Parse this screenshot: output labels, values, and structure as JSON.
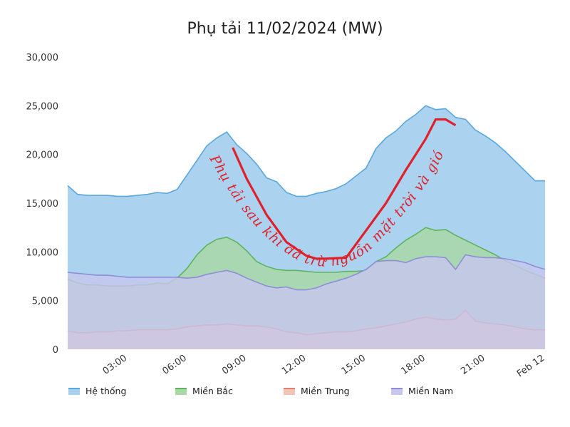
{
  "chart_data": {
    "type": "area",
    "title": "Phụ tải 11/02/2024 (MW)",
    "ylim": [
      0,
      30000
    ],
    "y_ticks": [
      "0",
      "5,000",
      "10,000",
      "15,000",
      "20,000",
      "25,000",
      "30,000"
    ],
    "x_range": [
      0,
      24
    ],
    "x_ticks": [
      {
        "x": 3,
        "label": "03:00"
      },
      {
        "x": 6,
        "label": "06:00"
      },
      {
        "x": 9,
        "label": "09:00"
      },
      {
        "x": 12,
        "label": "12:00"
      },
      {
        "x": 15,
        "label": "15:00"
      },
      {
        "x": 18,
        "label": "18:00"
      },
      {
        "x": 21,
        "label": "21:00"
      },
      {
        "x": 24,
        "label": "Feb 12"
      }
    ],
    "grid": false,
    "legend_position": "bottom",
    "x": [
      0,
      0.5,
      1,
      1.5,
      2,
      2.5,
      3,
      3.5,
      4,
      4.5,
      5,
      5.5,
      6,
      6.5,
      7,
      7.5,
      8,
      8.5,
      9,
      9.5,
      10,
      10.5,
      11,
      11.5,
      12,
      12.5,
      13,
      13.5,
      14,
      14.5,
      15,
      15.5,
      16,
      16.5,
      17,
      17.5,
      18,
      18.5,
      19,
      19.5,
      20,
      20.5,
      21,
      21.5,
      22,
      22.5,
      23,
      23.5,
      24
    ],
    "series": [
      {
        "name": "Hệ thống",
        "color": "#5aa7dd",
        "fill": "#a7d1ef",
        "values": [
          16800,
          15900,
          15800,
          15800,
          15800,
          15700,
          15700,
          15800,
          15900,
          16100,
          16000,
          16400,
          17900,
          19400,
          20900,
          21700,
          22300,
          21000,
          20100,
          19000,
          17600,
          17200,
          16100,
          15700,
          15700,
          16000,
          16200,
          16500,
          17000,
          17800,
          18600,
          20600,
          21700,
          22400,
          23400,
          24100,
          25000,
          24600,
          24700,
          23800,
          23600,
          22500,
          21900,
          21200,
          20300,
          19300,
          18300,
          17300,
          17300
        ]
      },
      {
        "name": "Miền Bắc",
        "color": "#5fb35f",
        "fill": "#a9d8a3",
        "values": [
          7200,
          6800,
          6600,
          6600,
          6500,
          6500,
          6500,
          6600,
          6600,
          6800,
          6700,
          7300,
          8300,
          9700,
          10700,
          11300,
          11500,
          11000,
          10100,
          9000,
          8500,
          8200,
          8100,
          8100,
          8000,
          7900,
          7900,
          7900,
          8000,
          8000,
          8100,
          9000,
          9500,
          10400,
          11200,
          11800,
          12500,
          12200,
          12300,
          11700,
          11200,
          10700,
          10200,
          9700,
          9100,
          8600,
          8100,
          7700,
          7300
        ]
      },
      {
        "name": "Miền Trung",
        "color": "#e07f6a",
        "fill": "#f3c3b7",
        "values": [
          1900,
          1700,
          1700,
          1800,
          1800,
          1900,
          1900,
          2000,
          2000,
          2000,
          2000,
          2100,
          2300,
          2400,
          2500,
          2500,
          2600,
          2500,
          2400,
          2400,
          2300,
          2100,
          1800,
          1700,
          1500,
          1600,
          1700,
          1800,
          1800,
          1900,
          2100,
          2200,
          2400,
          2600,
          2800,
          3100,
          3300,
          3100,
          3000,
          3100,
          4000,
          2900,
          2700,
          2600,
          2500,
          2300,
          2100,
          2000,
          2000
        ]
      },
      {
        "name": "Miền Nam",
        "color": "#8e8ed8",
        "fill": "#c7c7ee",
        "values": [
          7900,
          7800,
          7700,
          7600,
          7600,
          7500,
          7400,
          7400,
          7400,
          7400,
          7400,
          7400,
          7300,
          7400,
          7700,
          7900,
          8100,
          7800,
          7300,
          6900,
          6500,
          6300,
          6400,
          6100,
          6100,
          6300,
          6700,
          7000,
          7300,
          7700,
          8200,
          9000,
          9100,
          9100,
          8900,
          9300,
          9500,
          9500,
          9400,
          8200,
          9700,
          9500,
          9400,
          9400,
          9300,
          9100,
          8900,
          8500,
          8200
        ]
      }
    ],
    "annotation": {
      "text": "Phụ tải sau khi đã trừ nguồn mặt trời và gió",
      "color": "#e0202a",
      "curve": [
        [
          8.3,
          20700
        ],
        [
          9,
          17500
        ],
        [
          10,
          13800
        ],
        [
          11,
          11000
        ],
        [
          12,
          9600
        ],
        [
          12.5,
          9300
        ],
        [
          13,
          9300
        ],
        [
          14,
          9400
        ],
        [
          15,
          12200
        ],
        [
          16,
          15000
        ],
        [
          17,
          18400
        ],
        [
          18,
          21600
        ],
        [
          18.5,
          23600
        ],
        [
          19,
          23600
        ],
        [
          19.5,
          23000
        ]
      ]
    }
  }
}
